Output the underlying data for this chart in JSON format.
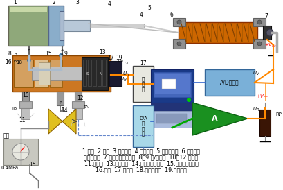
{
  "background_color": "#ffffff",
  "figsize": [
    4.09,
    2.74
  ],
  "dpi": 100,
  "caption_lines": [
    "1.气缸  2.活塞  3.直线轴承  4.气缸推杆  5.电位器滑杆  6.直滑式电",
    "位器传感器  7.滑动触点（电刷）  8、9.进/出气孔  10、12.消音器",
    "11.进气孔  13.电磁线圈  14.电动比例调节阀  15.气源处理三联件",
    "16.阀心  17.阀心杆  18.电磁阀壳体  19.永久磁铁"
  ],
  "caption_fontsize": 5.8,
  "caption_color": "#000000"
}
